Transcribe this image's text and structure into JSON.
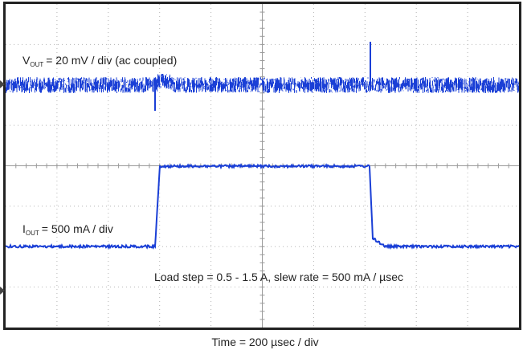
{
  "vout_label": {
    "symbol": "V",
    "subscript": "OUT",
    "text": "= 20 mV / div (ac coupled)"
  },
  "iout_label": {
    "symbol": "I",
    "subscript": "OUT",
    "text": "= 500 mA / div"
  },
  "load_step": "Load step = 0.5 - 1.5 A, slew rate = 500 mA / µsec",
  "time_base": "Time = 200 µsec / div"
}
